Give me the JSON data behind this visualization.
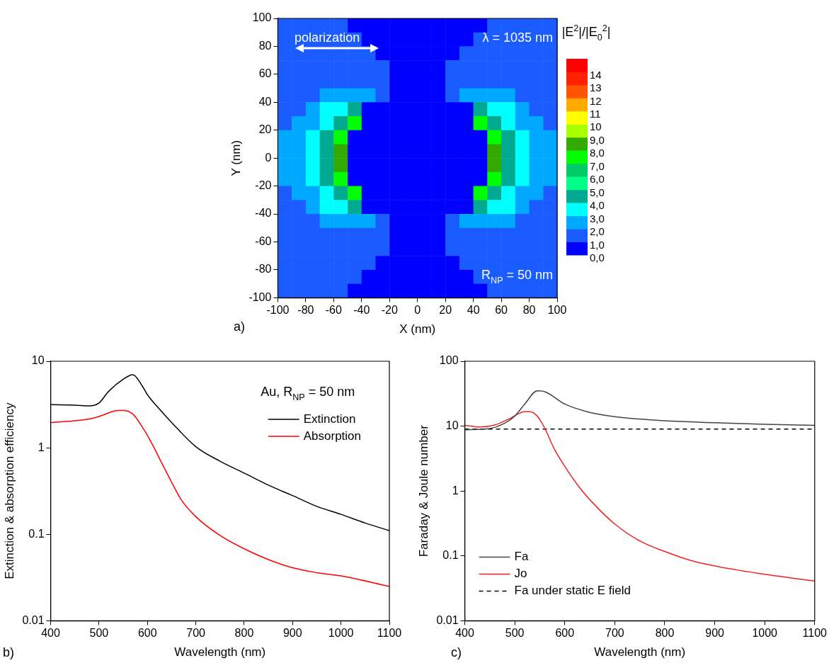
{
  "chart_data": [
    {
      "type": "heatmap",
      "xlabel": "X (nm)",
      "ylabel": "Y (nm)",
      "clabel": "|E$^{2}$|/|E$_{0}$$^{2}$|",
      "xlim": [
        -100,
        100
      ],
      "xticks": [
        -100,
        -80,
        -60,
        -40,
        -20,
        0,
        20,
        40,
        60,
        80,
        100
      ],
      "ylim": [
        -100,
        100
      ],
      "yticks": [
        -100,
        -80,
        -60,
        -40,
        -20,
        0,
        20,
        40,
        60,
        80,
        100
      ],
      "clim": [
        0,
        15
      ],
      "cticks": [
        {
          "value": 0,
          "label": "0,0"
        },
        {
          "value": 1,
          "label": "1,0"
        },
        {
          "value": 2,
          "label": "2,0"
        },
        {
          "value": 3,
          "label": "3,0"
        },
        {
          "value": 4,
          "label": "4,0"
        },
        {
          "value": 5,
          "label": "5,0"
        },
        {
          "value": 6,
          "label": "6,0"
        },
        {
          "value": 7,
          "label": "7,0"
        },
        {
          "value": 8,
          "label": "8,0"
        },
        {
          "value": 9,
          "label": "9,0"
        },
        10,
        11,
        12,
        13,
        14
      ],
      "cells": [
        [
          1.5,
          1.5,
          1.5,
          1.5,
          1.5,
          0.5,
          0.5,
          0.5,
          0.5,
          0.5,
          0.5,
          0.5,
          0.5,
          0.5,
          0.5,
          1.5,
          1.5,
          1.5,
          1.5,
          1.5
        ],
        [
          1.5,
          1.5,
          1.5,
          1.5,
          1.5,
          1.5,
          0.5,
          0.5,
          0.5,
          0.5,
          0.5,
          0.5,
          0.5,
          0.5,
          1.5,
          1.5,
          1.5,
          1.5,
          1.5,
          1.5
        ],
        [
          1.5,
          1.5,
          1.5,
          1.5,
          1.5,
          1.5,
          1.5,
          0.5,
          0.5,
          0.5,
          0.5,
          0.5,
          0.5,
          1.5,
          1.5,
          1.5,
          1.5,
          1.5,
          1.5,
          1.5
        ],
        [
          1.5,
          1.5,
          1.5,
          1.5,
          1.5,
          1.5,
          1.5,
          1.5,
          0.5,
          0.5,
          0.5,
          0.5,
          1.5,
          1.5,
          1.5,
          1.5,
          1.5,
          1.5,
          1.5,
          1.5
        ],
        [
          1.5,
          1.5,
          1.5,
          1.5,
          1.5,
          1.5,
          1.5,
          1.5,
          0.5,
          0.5,
          0.5,
          0.5,
          1.5,
          1.5,
          1.5,
          1.5,
          1.5,
          1.5,
          1.5,
          1.5
        ],
        [
          1.5,
          1.5,
          1.5,
          2.5,
          2.5,
          2.5,
          2.5,
          1.5,
          0.5,
          0.5,
          0.5,
          0.5,
          1.5,
          2.5,
          2.5,
          2.5,
          2.5,
          1.5,
          1.5,
          1.5
        ],
        [
          1.5,
          1.5,
          2.5,
          3.5,
          3.5,
          4.5,
          0.5,
          0.5,
          0.5,
          0.5,
          0.5,
          0.5,
          0.5,
          0.5,
          4.5,
          3.5,
          3.5,
          2.5,
          1.5,
          1.5
        ],
        [
          1.5,
          2.5,
          2.5,
          3.5,
          4.5,
          7.5,
          0.5,
          0.5,
          0.5,
          0.5,
          0.5,
          0.5,
          0.5,
          0.5,
          7.5,
          4.5,
          3.5,
          2.5,
          2.5,
          1.5
        ],
        [
          2.5,
          2.5,
          3.5,
          4.5,
          7.5,
          0.5,
          0.5,
          0.5,
          0.5,
          0.5,
          0.5,
          0.5,
          0.5,
          0.5,
          0.5,
          7.5,
          4.5,
          3.5,
          2.5,
          2.5
        ],
        [
          2.5,
          2.5,
          3.5,
          4.5,
          8.5,
          0.5,
          0.5,
          0.5,
          0.5,
          0.5,
          0.5,
          0.5,
          0.5,
          0.5,
          0.5,
          8.5,
          4.5,
          3.5,
          2.5,
          2.5
        ],
        [
          2.5,
          2.5,
          3.5,
          4.5,
          8.5,
          0.5,
          0.5,
          0.5,
          0.5,
          0.5,
          0.5,
          0.5,
          0.5,
          0.5,
          0.5,
          8.5,
          4.5,
          3.5,
          2.5,
          2.5
        ],
        [
          2.5,
          2.5,
          3.5,
          4.5,
          7.5,
          0.5,
          0.5,
          0.5,
          0.5,
          0.5,
          0.5,
          0.5,
          0.5,
          0.5,
          0.5,
          7.5,
          4.5,
          3.5,
          2.5,
          2.5
        ],
        [
          1.5,
          2.5,
          2.5,
          3.5,
          4.5,
          7.5,
          0.5,
          0.5,
          0.5,
          0.5,
          0.5,
          0.5,
          0.5,
          0.5,
          7.5,
          4.5,
          3.5,
          2.5,
          2.5,
          1.5
        ],
        [
          1.5,
          1.5,
          2.5,
          3.5,
          3.5,
          4.5,
          0.5,
          0.5,
          0.5,
          0.5,
          0.5,
          0.5,
          0.5,
          0.5,
          4.5,
          3.5,
          3.5,
          2.5,
          1.5,
          1.5
        ],
        [
          1.5,
          1.5,
          1.5,
          2.5,
          2.5,
          2.5,
          2.5,
          1.5,
          0.5,
          0.5,
          0.5,
          0.5,
          1.5,
          2.5,
          2.5,
          2.5,
          2.5,
          1.5,
          1.5,
          1.5
        ],
        [
          1.5,
          1.5,
          1.5,
          1.5,
          1.5,
          1.5,
          1.5,
          1.5,
          0.5,
          0.5,
          0.5,
          0.5,
          1.5,
          1.5,
          1.5,
          1.5,
          1.5,
          1.5,
          1.5,
          1.5
        ],
        [
          1.5,
          1.5,
          1.5,
          1.5,
          1.5,
          1.5,
          1.5,
          1.5,
          0.5,
          0.5,
          0.5,
          0.5,
          1.5,
          1.5,
          1.5,
          1.5,
          1.5,
          1.5,
          1.5,
          1.5
        ],
        [
          1.5,
          1.5,
          1.5,
          1.5,
          1.5,
          1.5,
          1.5,
          0.5,
          0.5,
          0.5,
          0.5,
          0.5,
          0.5,
          1.5,
          1.5,
          1.5,
          1.5,
          1.5,
          1.5,
          1.5
        ],
        [
          1.5,
          1.5,
          1.5,
          1.5,
          1.5,
          1.5,
          0.5,
          0.5,
          0.5,
          0.5,
          0.5,
          0.5,
          0.5,
          0.5,
          1.5,
          1.5,
          1.5,
          1.5,
          1.5,
          1.5
        ],
        [
          1.5,
          1.5,
          1.5,
          1.5,
          1.5,
          0.5,
          0.5,
          0.5,
          0.5,
          0.5,
          0.5,
          0.5,
          0.5,
          0.5,
          0.5,
          1.5,
          1.5,
          1.5,
          1.5,
          1.5
        ]
      ],
      "annotations": [
        "polarization",
        "λ = 1035 nm",
        "R$_{NP}$ = 50 nm",
        "a)"
      ]
    },
    {
      "type": "line",
      "xlabel": "Wavelength (nm)",
      "ylabel": "Extinction & absorption efficiency",
      "xlim": [
        400,
        1100
      ],
      "xticks": [
        400,
        500,
        600,
        700,
        800,
        900,
        1000,
        1100
      ],
      "ylim": [
        0.01,
        10
      ],
      "yticks": [
        0.01,
        0.1,
        1,
        10
      ],
      "log": "y",
      "legend": "top right",
      "marker": "none",
      "series": [
        {
          "name": "Extinction",
          "color": "#000000",
          "x": [
            400,
            450,
            480,
            500,
            520,
            550,
            570,
            590,
            600,
            620,
            650,
            700,
            750,
            800,
            850,
            900,
            950,
            1000,
            1050,
            1100
          ],
          "values": [
            3.15,
            3.1,
            3.05,
            3.3,
            4.5,
            6.2,
            7.0,
            5.1,
            4.1,
            3.0,
            1.96,
            1.03,
            0.7,
            0.51,
            0.37,
            0.28,
            0.21,
            0.17,
            0.135,
            0.11
          ]
        },
        {
          "name": "Absorption",
          "color": "#ff0000",
          "x": [
            400,
            480,
            500,
            540,
            550,
            570,
            590,
            610,
            630,
            650,
            670,
            700,
            750,
            800,
            850,
            900,
            950,
            1000,
            1100
          ],
          "values": [
            1.95,
            2.15,
            2.3,
            2.7,
            2.7,
            2.45,
            1.72,
            1.1,
            0.66,
            0.4,
            0.25,
            0.16,
            0.097,
            0.068,
            0.051,
            0.041,
            0.036,
            0.033,
            0.025
          ]
        }
      ],
      "annotations": [
        "Au, R$_{NP}$ = 50 nm",
        "b)"
      ]
    },
    {
      "type": "line",
      "xlabel": "Wavelength (nm)",
      "ylabel": "Faraday & Joule number",
      "xlim": [
        400,
        1100
      ],
      "xticks": [
        400,
        500,
        600,
        700,
        800,
        900,
        1000,
        1100
      ],
      "ylim": [
        0.01,
        100
      ],
      "yticks": [
        0.01,
        0.1,
        1,
        10,
        100
      ],
      "log": "y",
      "legend": "bottom left",
      "marker": "none",
      "series": [
        {
          "name": "Fa",
          "color": "#444444",
          "x": [
            400,
            450,
            480,
            500,
            520,
            545,
            560,
            600,
            650,
            700,
            800,
            900,
            1000,
            1100
          ],
          "values": [
            8.8,
            9.2,
            11.1,
            14.3,
            21.9,
            35,
            34,
            21.9,
            16.3,
            14.0,
            12.1,
            11.3,
            10.7,
            10.3
          ]
        },
        {
          "name": "Jo",
          "color": "#ee2222",
          "x": [
            400,
            430,
            460,
            490,
            520,
            530,
            545,
            560,
            580,
            600,
            630,
            660,
            700,
            750,
            800,
            850,
            900,
            1000,
            1100
          ],
          "values": [
            10.35,
            9.7,
            10.4,
            13.1,
            16.7,
            16.7,
            14.3,
            9.3,
            4.3,
            2.4,
            1.12,
            0.61,
            0.31,
            0.17,
            0.117,
            0.086,
            0.07,
            0.052,
            0.041
          ]
        },
        {
          "name": "Fa under static E field",
          "color": "#000000",
          "line_style": "dashed",
          "x": [
            400,
            1100
          ],
          "values": [
            9,
            9
          ]
        }
      ],
      "annotations": [
        "c)"
      ]
    }
  ]
}
